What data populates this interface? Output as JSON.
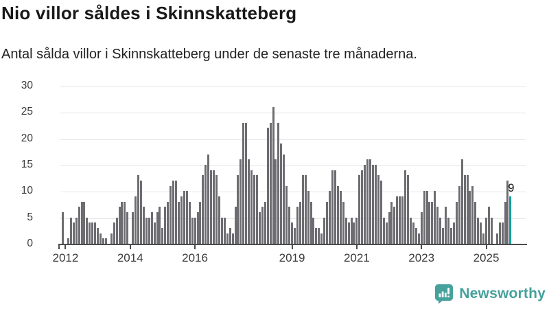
{
  "header": {
    "title": "Nio villor såldes i Skinnskatteberg",
    "subtitle": "Antal sålda villor i Skinnskatteberg under de senaste tre månaderna."
  },
  "chart_data": {
    "type": "bar",
    "title": "Nio villor såldes i Skinnskatteberg",
    "subtitle": "Antal sålda villor i Skinnskatteberg under de senaste tre månaderna.",
    "x_start_month": "2011-12",
    "x_end_month": "2025-10",
    "values": [
      6,
      0,
      1,
      5,
      4,
      5,
      7,
      8,
      8,
      5,
      4,
      4,
      4,
      3,
      2,
      1,
      1,
      0,
      2,
      4,
      5,
      7,
      8,
      8,
      6,
      0,
      6,
      9,
      13,
      12,
      7,
      5,
      5,
      6,
      4,
      6,
      7,
      3,
      7,
      8,
      11,
      12,
      12,
      8,
      9,
      10,
      10,
      8,
      5,
      5,
      6,
      8,
      13,
      15,
      17,
      14,
      14,
      13,
      9,
      5,
      5,
      2,
      3,
      2,
      7,
      13,
      16,
      23,
      23,
      16,
      14,
      13,
      13,
      6,
      7,
      8,
      22,
      23,
      26,
      16,
      23,
      19,
      17,
      11,
      7,
      4,
      3,
      7,
      8,
      13,
      13,
      10,
      8,
      5,
      3,
      3,
      2,
      5,
      8,
      10,
      14,
      14,
      11,
      10,
      8,
      5,
      4,
      5,
      4,
      5,
      13,
      14,
      15,
      16,
      16,
      15,
      15,
      13,
      12,
      5,
      4,
      6,
      8,
      7,
      9,
      9,
      9,
      14,
      13,
      5,
      4,
      3,
      2,
      6,
      10,
      10,
      8,
      8,
      10,
      7,
      5,
      3,
      7,
      5,
      3,
      4,
      8,
      11,
      16,
      13,
      13,
      10,
      11,
      8,
      5,
      4,
      2,
      5,
      7,
      5,
      0,
      2,
      4,
      4,
      8,
      12,
      9
    ],
    "highlight": {
      "index": 166,
      "value": 9,
      "label": "9"
    },
    "ylim": [
      0,
      30
    ],
    "yticks": [
      0,
      5,
      10,
      15,
      20,
      25,
      30
    ],
    "xticks": [
      {
        "label": "2012",
        "month_index": 1
      },
      {
        "label": "2014",
        "month_index": 25
      },
      {
        "label": "2016",
        "month_index": 49
      },
      {
        "label": "2019",
        "month_index": 85
      },
      {
        "label": "2021",
        "month_index": 109
      },
      {
        "label": "2023",
        "month_index": 133
      },
      {
        "label": "2025",
        "month_index": 157
      }
    ],
    "grid": true,
    "legend": "none",
    "bar_color": "#6d6d71",
    "highlight_color": "#12a19b",
    "gridline_color": "#e4e4e4",
    "axis_color": "#4a4c4e"
  },
  "footer": {
    "brand": "Newsworthy",
    "brand_color": "#46a19c"
  }
}
